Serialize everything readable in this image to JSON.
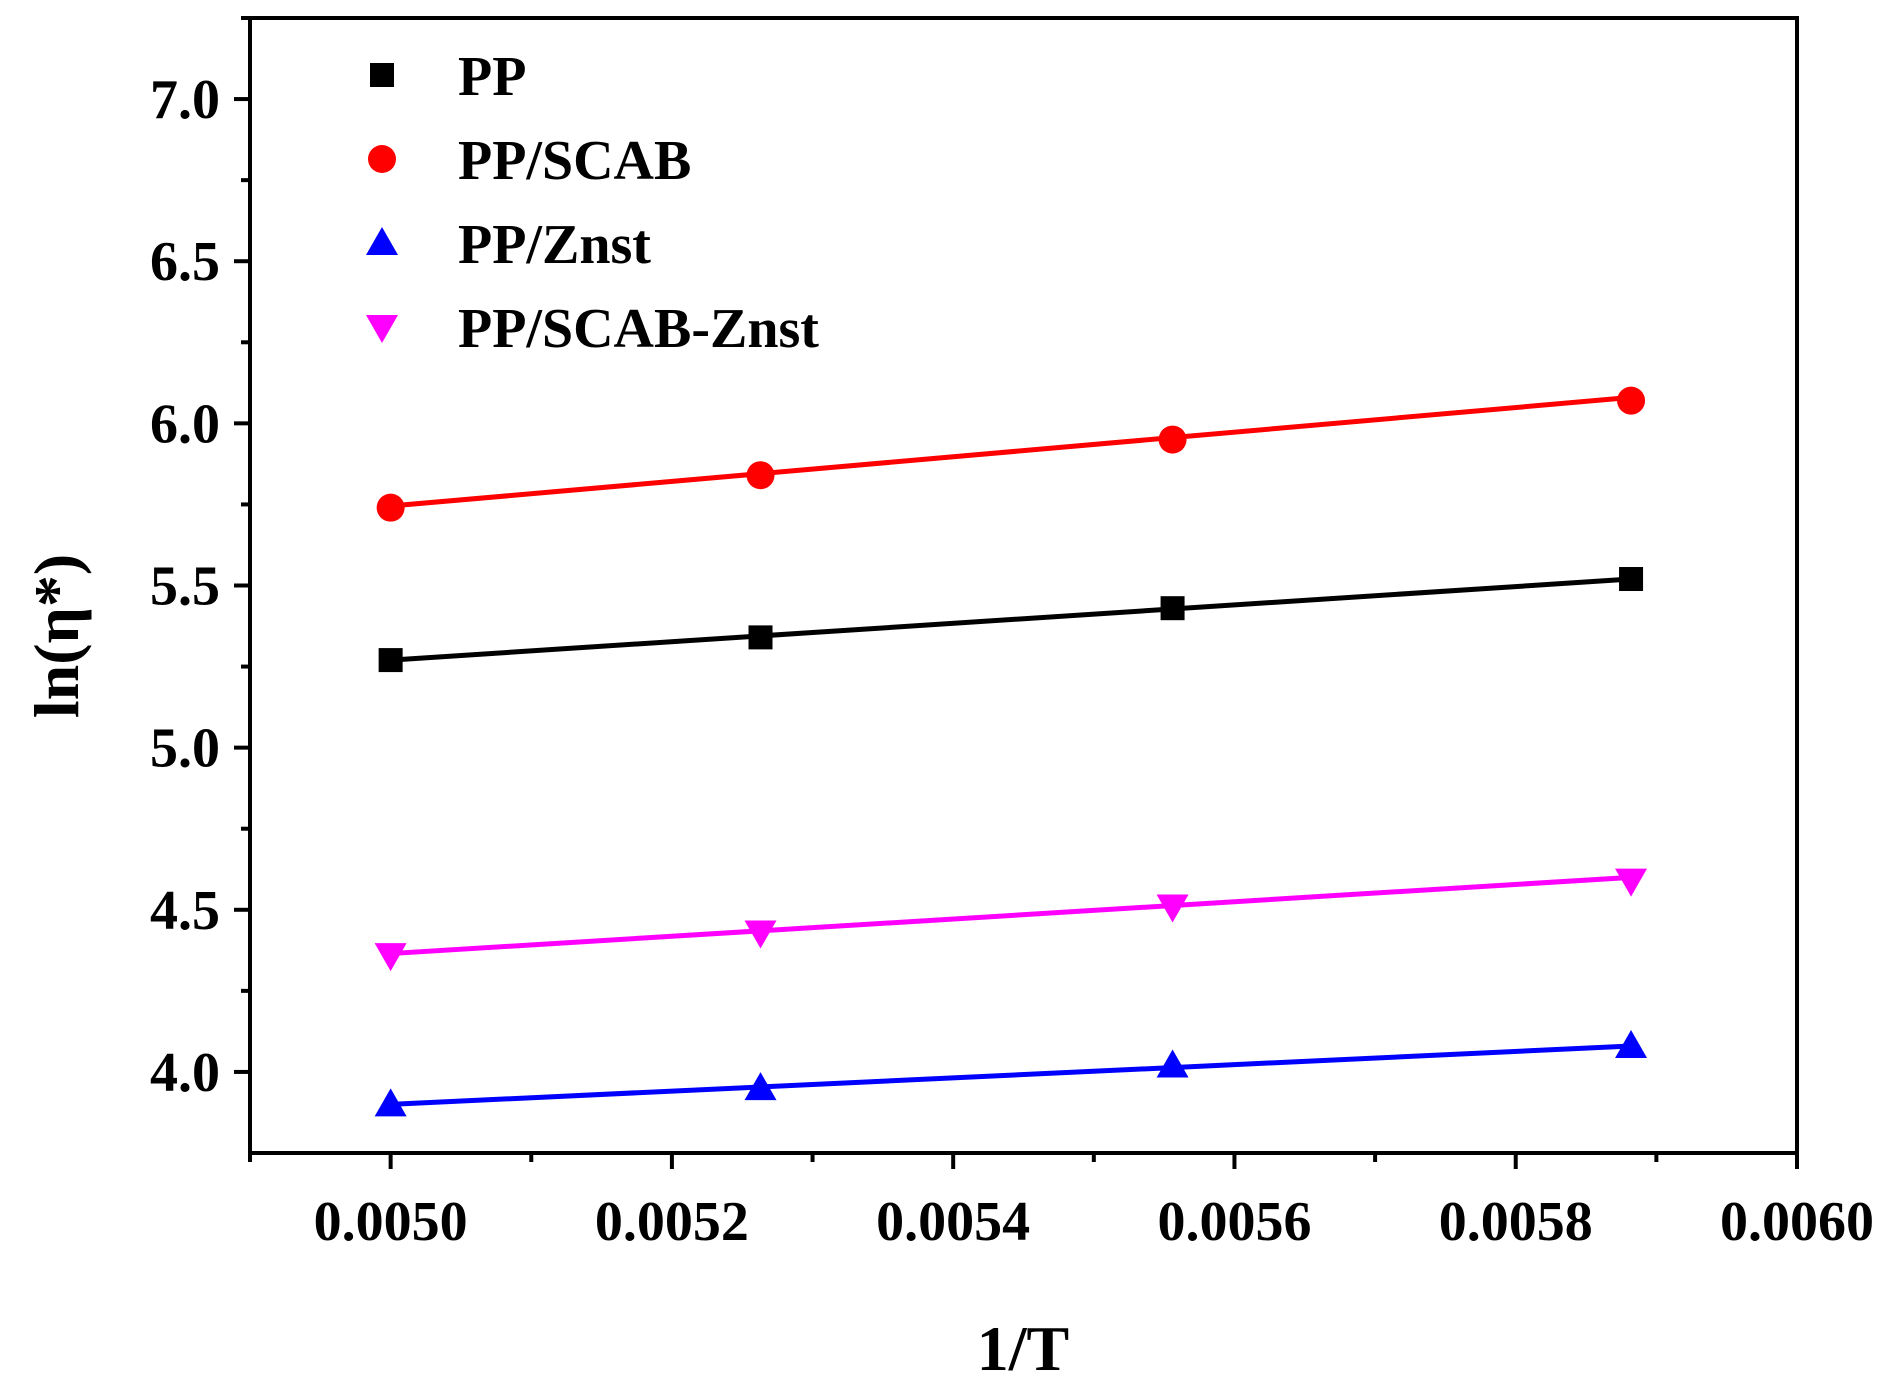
{
  "chart_data": {
    "type": "scatter",
    "title": "",
    "xlabel": "1/T",
    "ylabel": "ln(η*)",
    "xlim": [
      0.0049,
      0.006
    ],
    "ylim": [
      3.75,
      7.25
    ],
    "xticks": [
      0.005,
      0.0052,
      0.0054,
      0.0056,
      0.0058,
      0.006
    ],
    "xtick_labels": [
      "0.0050",
      "0.0052",
      "0.0054",
      "0.0056",
      "0.0058",
      "0.0060"
    ],
    "yticks": [
      4.0,
      4.5,
      5.0,
      5.5,
      6.0,
      6.5,
      7.0
    ],
    "ytick_labels": [
      "4.0",
      "4.5",
      "5.0",
      "5.5",
      "6.0",
      "6.5",
      "7.0"
    ],
    "grid": false,
    "legend_position": "top-left",
    "x": [
      0.005,
      0.005263,
      0.005556,
      0.005882
    ],
    "series": [
      {
        "name": "PP",
        "marker": "square",
        "color": "#000000",
        "values": [
          5.27,
          5.34,
          5.43,
          5.52
        ],
        "fit": [
          5.27,
          5.52
        ]
      },
      {
        "name": "PP/SCAB",
        "marker": "circle",
        "color": "#ff0000",
        "values": [
          5.74,
          5.84,
          5.95,
          6.07
        ],
        "fit": [
          5.745,
          6.08
        ]
      },
      {
        "name": "PP/Znst",
        "marker": "triangle-up",
        "color": "#0000ff",
        "values": [
          3.9,
          3.95,
          4.02,
          4.08
        ],
        "fit": [
          3.9,
          4.08
        ]
      },
      {
        "name": "PP/SCAB-Znst",
        "marker": "triangle-down",
        "color": "#ff00ff",
        "values": [
          4.36,
          4.43,
          4.51,
          4.59
        ],
        "fit": [
          4.365,
          4.6
        ]
      }
    ]
  }
}
